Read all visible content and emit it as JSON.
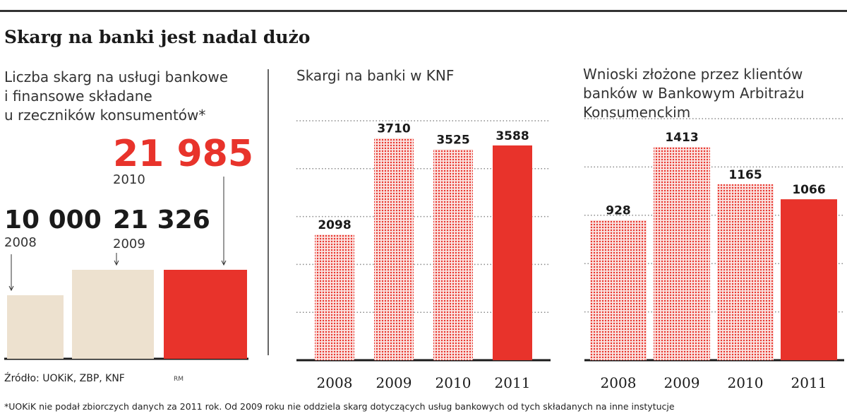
{
  "headline": "Skarg na banki jest nadal dużo",
  "source": "Źródło: UOKiK, ZBP, KNF",
  "credit": "RM",
  "footnote": "*UOKiK nie podał zbiorczych danych za 2011 rok. Od 2009 roku nie oddziela skarg dotyczących usług bankowych od tych składanych na inne instytucje",
  "colors": {
    "red": "#e8332b",
    "beige": "#ede1cf",
    "dark": "#1a1a1a",
    "grid": "#8a8a8a"
  },
  "chart_data": [
    {
      "type": "bar",
      "title": "Liczba skarg na usługi bankowe\ni finansowe składane\nu rzeczników konsumentów*",
      "categories": [
        "2008",
        "2009",
        "2010"
      ],
      "values": [
        10000,
        21326,
        21985
      ],
      "value_labels": [
        "10 000",
        "21 326",
        "21 985"
      ],
      "colors": [
        "#ede1cf",
        "#ede1cf",
        "#e8332b"
      ],
      "axis_breaks": true
    },
    {
      "type": "bar",
      "title": "Skargi na banki w KNF",
      "categories": [
        "2008",
        "2009",
        "2010",
        "2011"
      ],
      "values": [
        2098,
        3710,
        3525,
        3588
      ],
      "styles": [
        "dotted",
        "dotted",
        "dotted",
        "solid"
      ],
      "ylim": [
        0,
        4000
      ],
      "grid": true
    },
    {
      "type": "bar",
      "title": "Wnioski złożone przez klientów\nbanków w Bankowym Arbitrażu\nKonsumenckim",
      "categories": [
        "2008",
        "2009",
        "2010",
        "2011"
      ],
      "values": [
        928,
        1413,
        1165,
        1066
      ],
      "styles": [
        "dotted",
        "dotted",
        "dotted",
        "solid"
      ],
      "ylim": [
        0,
        1600
      ],
      "grid": true
    }
  ]
}
